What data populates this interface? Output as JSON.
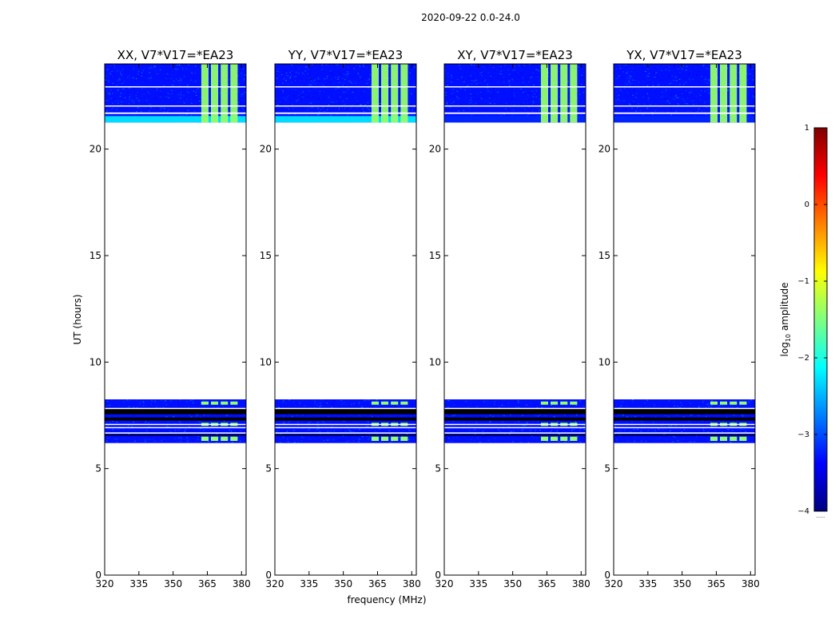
{
  "chart_data": {
    "type": "heatmap",
    "suptitle": "2020-09-22 0.0-24.0",
    "xlabel": "frequency (MHz)",
    "ylabel": "UT (hours)",
    "xlim": [
      320,
      382
    ],
    "ylim": [
      0,
      24
    ],
    "xticks": [
      320,
      335,
      350,
      365,
      380
    ],
    "yticks": [
      0,
      5,
      10,
      15,
      20
    ],
    "colorbar": {
      "label_prefix": "log",
      "label_sub": "10",
      "label_suffix": " amplitude",
      "ticks": [
        1,
        0,
        -1,
        -2,
        -3,
        -4
      ],
      "range": [
        -4,
        1
      ],
      "footnote": "......",
      "colors": [
        "#00007f",
        "#0000ff",
        "#007fff",
        "#00ffff",
        "#7fff7f",
        "#ffff00",
        "#ff7f00",
        "#ff0000",
        "#7f0000"
      ]
    },
    "data_blocks_hours": [
      {
        "start": 6.2,
        "end": 8.25,
        "background_log10": -3.3
      },
      {
        "start": 21.25,
        "end": 24.0,
        "background_log10": -3.3
      }
    ],
    "blank_gaps_hours": [
      {
        "start": 7.55,
        "end": 7.8
      },
      {
        "start": 7.25,
        "end": 7.4
      },
      {
        "start": 6.55,
        "end": 6.6
      },
      {
        "start": 21.65,
        "end": 21.72
      },
      {
        "start": 22.0,
        "end": 22.05
      },
      {
        "start": 22.9,
        "end": 22.95
      }
    ],
    "rfi_band_mhz": [
      362,
      379
    ],
    "rfi_level_log10": -1.4,
    "series": [
      {
        "name": "XX, V7*V17=*EA23",
        "strong_low_band": true
      },
      {
        "name": "YY, V7*V17=*EA23",
        "strong_low_band": true
      },
      {
        "name": "XY, V7*V17=*EA23",
        "strong_low_band": false
      },
      {
        "name": "YX, V7*V17=*EA23",
        "strong_low_band": false
      }
    ]
  }
}
